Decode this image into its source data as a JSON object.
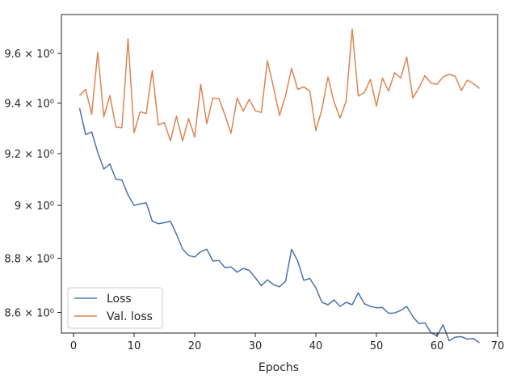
{
  "chart_data": {
    "type": "line",
    "title": "",
    "xlabel": "Epochs",
    "ylabel": "",
    "xlim": [
      -2,
      70
    ],
    "ylim": [
      8.525,
      9.76
    ],
    "yscale": "log",
    "x_ticks": [
      0,
      10,
      20,
      30,
      40,
      50,
      60,
      70
    ],
    "y_ticks": [
      {
        "value": 8.6,
        "label": "8.6 × 10⁰"
      },
      {
        "value": 8.8,
        "label": "8.8 × 10⁰"
      },
      {
        "value": 9.0,
        "label": "9 × 10⁰"
      },
      {
        "value": 9.2,
        "label": "9.2 × 10⁰"
      },
      {
        "value": 9.4,
        "label": "9.4 × 10⁰"
      },
      {
        "value": 9.6,
        "label": "9.6 × 10⁰"
      }
    ],
    "grid": false,
    "legend_position": "lower-left",
    "x": [
      1,
      2,
      3,
      4,
      5,
      6,
      7,
      8,
      9,
      10,
      11,
      12,
      13,
      14,
      15,
      16,
      17,
      18,
      19,
      20,
      21,
      22,
      23,
      24,
      25,
      26,
      27,
      28,
      29,
      30,
      31,
      32,
      33,
      34,
      35,
      36,
      37,
      38,
      39,
      40,
      41,
      42,
      43,
      44,
      45,
      46,
      47,
      48,
      49,
      50,
      51,
      52,
      53,
      54,
      55,
      56,
      57,
      58,
      59,
      60,
      61,
      62,
      63,
      64,
      65,
      66,
      67
    ],
    "series": [
      {
        "name": "Loss",
        "color": "#4c72b0",
        "values": [
          9.38,
          9.275,
          9.285,
          9.205,
          9.14,
          9.16,
          9.1,
          9.098,
          9.04,
          9.0,
          9.006,
          9.01,
          8.94,
          8.93,
          8.934,
          8.94,
          8.89,
          8.835,
          8.81,
          8.805,
          8.825,
          8.834,
          8.79,
          8.792,
          8.765,
          8.768,
          8.748,
          8.762,
          8.755,
          8.728,
          8.698,
          8.72,
          8.702,
          8.694,
          8.715,
          8.834,
          8.79,
          8.718,
          8.725,
          8.69,
          8.637,
          8.628,
          8.646,
          8.622,
          8.637,
          8.628,
          8.672,
          8.632,
          8.622,
          8.617,
          8.618,
          8.597,
          8.598,
          8.607,
          8.622,
          8.585,
          8.559,
          8.562,
          8.526,
          8.515,
          8.555,
          8.497,
          8.51,
          8.512,
          8.503,
          8.505,
          8.49
        ]
      },
      {
        "name": "Val. loss",
        "color": "#dd8452",
        "values": [
          9.43,
          9.455,
          9.355,
          9.605,
          9.345,
          9.43,
          9.305,
          9.302,
          9.66,
          9.282,
          9.365,
          9.358,
          9.53,
          9.313,
          9.322,
          9.25,
          9.348,
          9.25,
          9.338,
          9.265,
          9.475,
          9.318,
          9.42,
          9.418,
          9.352,
          9.28,
          9.42,
          9.368,
          9.415,
          9.37,
          9.362,
          9.57,
          9.465,
          9.35,
          9.43,
          9.54,
          9.455,
          9.465,
          9.448,
          9.29,
          9.375,
          9.505,
          9.405,
          9.34,
          9.408,
          9.7,
          9.428,
          9.442,
          9.495,
          9.388,
          9.5,
          9.448,
          9.522,
          9.5,
          9.585,
          9.42,
          9.46,
          9.51,
          9.48,
          9.475,
          9.505,
          9.515,
          9.508,
          9.45,
          9.492,
          9.478,
          9.458
        ]
      }
    ]
  }
}
